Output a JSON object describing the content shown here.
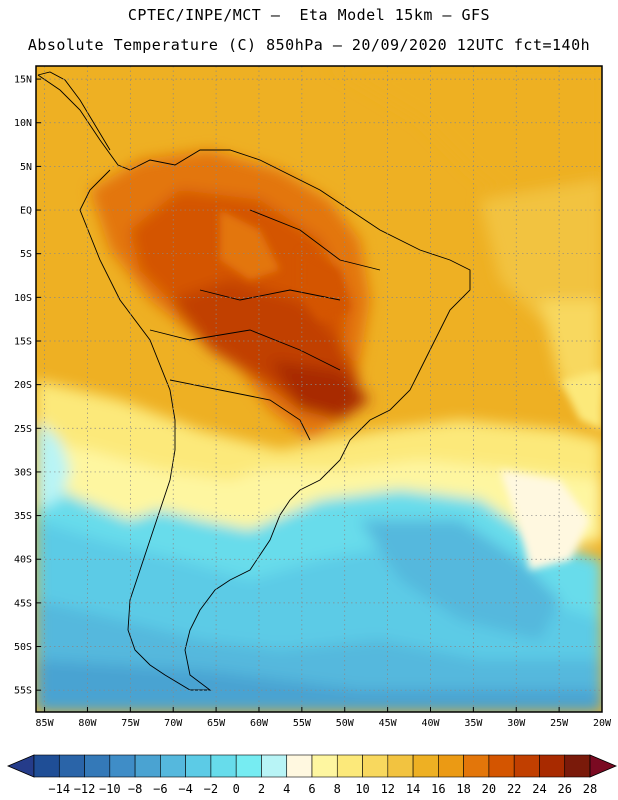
{
  "header": {
    "line1": "CPTEC/INPE/MCT –  Eta Model 15km – GFS",
    "line2": "Absolute Temperature (C) 850hPa – 20/09/2020 12UTC fct=140h"
  },
  "axes": {
    "lat_labels": [
      "15N",
      "10N",
      "5N",
      "EQ",
      "5S",
      "10S",
      "15S",
      "20S",
      "25S",
      "30S",
      "35S",
      "40S",
      "45S",
      "50S",
      "55S"
    ],
    "lon_labels": [
      "85W",
      "80W",
      "75W",
      "70W",
      "65W",
      "60W",
      "55W",
      "50W",
      "45W",
      "40W",
      "35W",
      "30W",
      "25W",
      "20W"
    ],
    "lat_values": [
      15,
      10,
      5,
      0,
      -5,
      -10,
      -15,
      -20,
      -25,
      -30,
      -35,
      -40,
      -45,
      -50,
      -55
    ],
    "lon_values": [
      -85,
      -80,
      -75,
      -70,
      -65,
      -60,
      -55,
      -50,
      -45,
      -40,
      -35,
      -30,
      -25,
      -20
    ],
    "lat_range": [
      -57.5,
      16.5
    ],
    "lon_range": [
      -86,
      -20
    ],
    "grid": true
  },
  "colorbar": {
    "labels": [
      "-14",
      "-12",
      "-10",
      "-8",
      "-6",
      "-4",
      "-2",
      "0",
      "2",
      "4",
      "6",
      "8",
      "10",
      "12",
      "14",
      "16",
      "18",
      "20",
      "22",
      "24",
      "26",
      "28"
    ],
    "colors": [
      "#1f4e96",
      "#2a64a8",
      "#3479b8",
      "#3f8dc7",
      "#4aa3d2",
      "#55b8dd",
      "#5ccbe6",
      "#67dceb",
      "#76ecf2",
      "#b8f4f6",
      "#fff8e0",
      "#fef6a0",
      "#fce97a",
      "#f8d85e",
      "#f2c340",
      "#eeb023",
      "#eb9a14",
      "#e3760a",
      "#d45500",
      "#c13f00",
      "#a82a00",
      "#7a1a0a"
    ],
    "under_color": "#253c8a",
    "over_color": "#7a0a22"
  },
  "colors": {
    "land_outline": "#000000",
    "grid_line": "#888888"
  }
}
